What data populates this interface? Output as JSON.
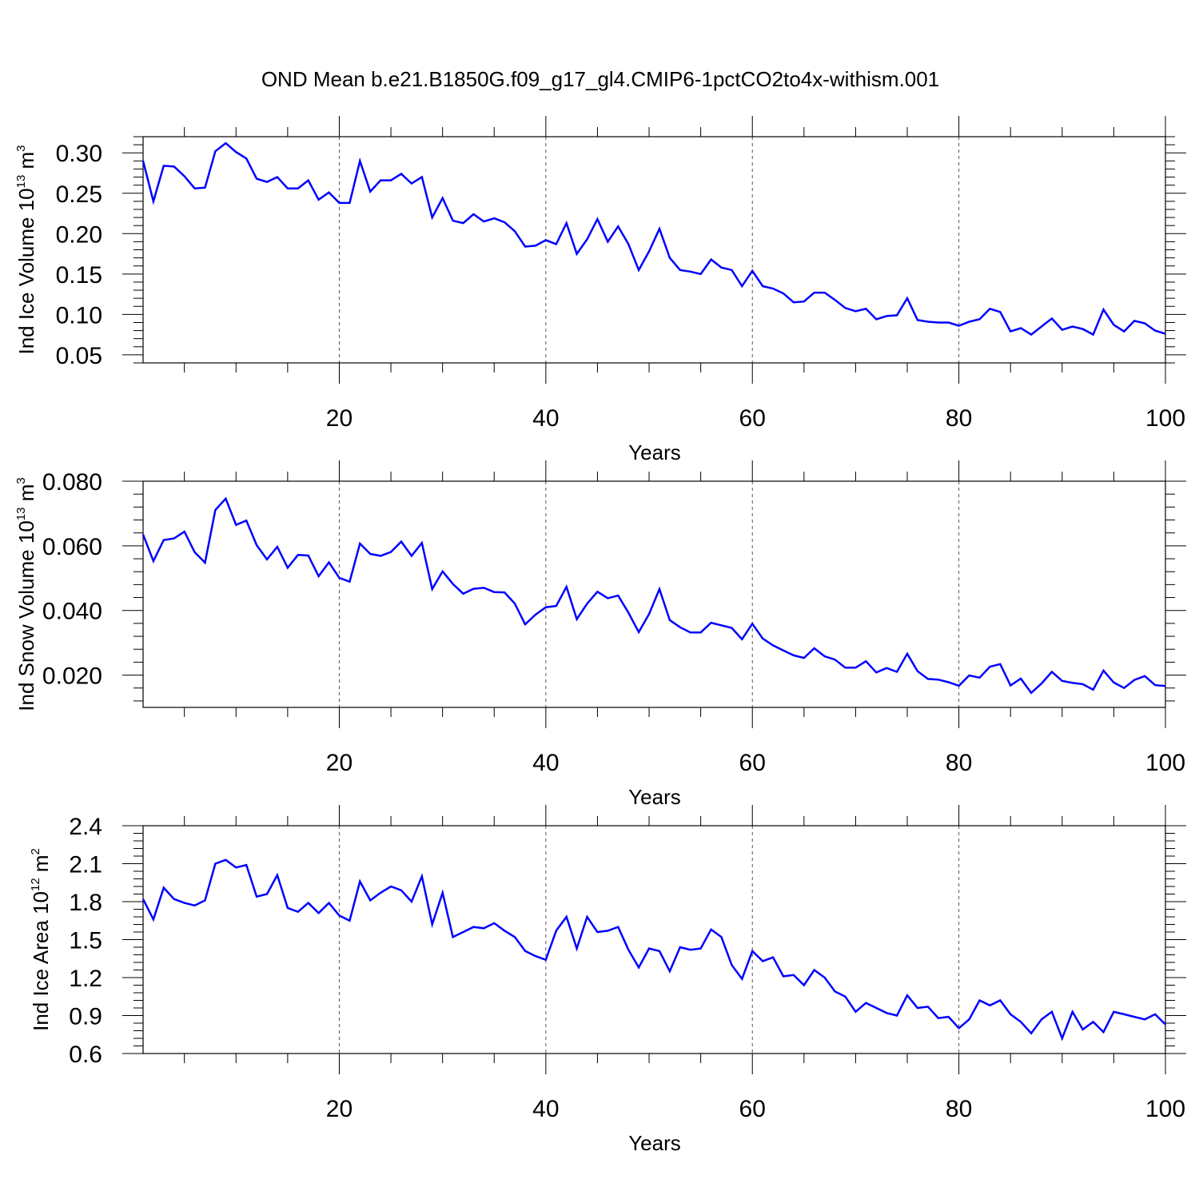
{
  "title": "OND Mean b.e21.B1850G.f09_g17_gl4.CMIP6-1pctCO2to4x-withism.001",
  "colors": {
    "line": "#0000ff",
    "axes": "#000000",
    "grid": "#555555",
    "background": "#ffffff"
  },
  "chart_data": [
    {
      "type": "line",
      "ylabel_main": "Ind Ice Volume 10",
      "ylabel_exp": "13",
      "ylabel_unit": " m",
      "ylabel_unit_exp": "3",
      "xlabel": "Years",
      "xlim": [
        1,
        100
      ],
      "ylim": [
        0.04,
        0.32
      ],
      "xticks": [
        20,
        40,
        60,
        80,
        100
      ],
      "yticks": [
        0.05,
        0.1,
        0.15,
        0.2,
        0.25,
        0.3
      ],
      "ytick_labels": [
        "0.05",
        "0.10",
        "0.15",
        "0.20",
        "0.25",
        "0.30"
      ],
      "grid": "vertical dashed at major x ticks",
      "series": [
        {
          "values": [
            0.29,
            0.24,
            0.284,
            0.283,
            0.271,
            0.256,
            0.257,
            0.302,
            0.312,
            0.301,
            0.293,
            0.268,
            0.264,
            0.27,
            0.256,
            0.256,
            0.266,
            0.242,
            0.251,
            0.238,
            0.238,
            0.29,
            0.252,
            0.266,
            0.266,
            0.274,
            0.262,
            0.27,
            0.22,
            0.244,
            0.216,
            0.213,
            0.224,
            0.215,
            0.219,
            0.214,
            0.203,
            0.184,
            0.185,
            0.192,
            0.187,
            0.213,
            0.175,
            0.193,
            0.218,
            0.19,
            0.209,
            0.187,
            0.155,
            0.178,
            0.206,
            0.17,
            0.155,
            0.153,
            0.15,
            0.168,
            0.158,
            0.155,
            0.135,
            0.154,
            0.135,
            0.132,
            0.126,
            0.115,
            0.116,
            0.127,
            0.127,
            0.118,
            0.108,
            0.104,
            0.107,
            0.094,
            0.098,
            0.099,
            0.12,
            0.093,
            0.091,
            0.09,
            0.09,
            0.086,
            0.091,
            0.094,
            0.107,
            0.103,
            0.079,
            0.083,
            0.075,
            0.085,
            0.095,
            0.081,
            0.085,
            0.082,
            0.075,
            0.106,
            0.087,
            0.079,
            0.092,
            0.089,
            0.08,
            0.076
          ]
        }
      ]
    },
    {
      "type": "line",
      "ylabel_main": "Ind Snow Volume 10",
      "ylabel_exp": "13",
      "ylabel_unit": " m",
      "ylabel_unit_exp": "3",
      "xlabel": "Years",
      "xlim": [
        1,
        100
      ],
      "ylim": [
        0.01,
        0.08
      ],
      "xticks": [
        20,
        40,
        60,
        80,
        100
      ],
      "yticks": [
        0.02,
        0.04,
        0.06,
        0.08
      ],
      "ytick_labels": [
        "0.020",
        "0.040",
        "0.060",
        "0.080"
      ],
      "grid": "vertical dashed at major x ticks",
      "series": [
        {
          "values": [
            0.0635,
            0.0553,
            0.0618,
            0.0623,
            0.0644,
            0.058,
            0.0548,
            0.0711,
            0.0746,
            0.0665,
            0.0678,
            0.0602,
            0.0558,
            0.0597,
            0.0532,
            0.0572,
            0.057,
            0.0506,
            0.0549,
            0.0501,
            0.0489,
            0.0607,
            0.0575,
            0.0569,
            0.0581,
            0.0613,
            0.0569,
            0.0609,
            0.0466,
            0.0521,
            0.0482,
            0.0452,
            0.0467,
            0.047,
            0.0457,
            0.0456,
            0.0421,
            0.0357,
            0.0387,
            0.041,
            0.0414,
            0.0473,
            0.0373,
            0.0421,
            0.0458,
            0.0438,
            0.0446,
            0.0393,
            0.0333,
            0.0389,
            0.0466,
            0.037,
            0.0348,
            0.0332,
            0.0332,
            0.0362,
            0.0354,
            0.0346,
            0.0311,
            0.0359,
            0.0313,
            0.0292,
            0.0276,
            0.0261,
            0.0253,
            0.0283,
            0.0258,
            0.0248,
            0.0223,
            0.0223,
            0.0243,
            0.0208,
            0.0222,
            0.021,
            0.0266,
            0.0212,
            0.0188,
            0.0186,
            0.0178,
            0.0167,
            0.0199,
            0.0192,
            0.0226,
            0.0234,
            0.0168,
            0.0189,
            0.0145,
            0.0174,
            0.021,
            0.0182,
            0.0176,
            0.0172,
            0.0155,
            0.0214,
            0.0177,
            0.016,
            0.0185,
            0.0197,
            0.0169,
            0.0166
          ]
        }
      ]
    },
    {
      "type": "line",
      "ylabel_main": "Ind Ice Area 10",
      "ylabel_exp": "12",
      "ylabel_unit": " m",
      "ylabel_unit_exp": "2",
      "xlabel": "Years",
      "xlim": [
        1,
        100
      ],
      "ylim": [
        0.6,
        2.4
      ],
      "xticks": [
        20,
        40,
        60,
        80,
        100
      ],
      "yticks": [
        0.6,
        0.9,
        1.2,
        1.5,
        1.8,
        2.1,
        2.4
      ],
      "ytick_labels": [
        "0.6",
        "0.9",
        "1.2",
        "1.5",
        "1.8",
        "2.1",
        "2.4"
      ],
      "grid": "vertical dashed at major x ticks",
      "series": [
        {
          "values": [
            1.82,
            1.66,
            1.91,
            1.82,
            1.79,
            1.77,
            1.81,
            2.1,
            2.13,
            2.07,
            2.09,
            1.84,
            1.86,
            2.01,
            1.75,
            1.72,
            1.79,
            1.71,
            1.79,
            1.69,
            1.65,
            1.96,
            1.81,
            1.87,
            1.92,
            1.89,
            1.8,
            2.0,
            1.62,
            1.87,
            1.52,
            1.56,
            1.6,
            1.59,
            1.63,
            1.57,
            1.52,
            1.41,
            1.37,
            1.34,
            1.57,
            1.68,
            1.43,
            1.68,
            1.56,
            1.57,
            1.6,
            1.42,
            1.28,
            1.43,
            1.41,
            1.25,
            1.44,
            1.42,
            1.43,
            1.58,
            1.52,
            1.3,
            1.19,
            1.41,
            1.33,
            1.36,
            1.21,
            1.22,
            1.14,
            1.26,
            1.2,
            1.09,
            1.05,
            0.93,
            1.0,
            0.96,
            0.92,
            0.9,
            1.06,
            0.96,
            0.97,
            0.88,
            0.89,
            0.8,
            0.87,
            1.02,
            0.98,
            1.02,
            0.91,
            0.85,
            0.76,
            0.87,
            0.93,
            0.72,
            0.93,
            0.79,
            0.85,
            0.77,
            0.93,
            0.91,
            0.89,
            0.87,
            0.91,
            0.83
          ]
        }
      ]
    }
  ]
}
